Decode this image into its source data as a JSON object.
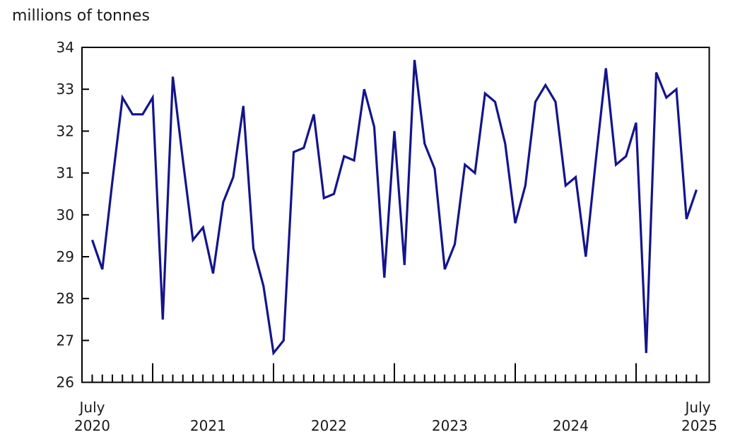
{
  "chart_data": {
    "type": "line",
    "title": "millions of tonnes",
    "grid": false,
    "legend_position": "none",
    "line_color": "#14148c",
    "axis_color": "#000000",
    "x_axis": {
      "start_label_line1": "July",
      "start_label_line2": "2020",
      "end_label_line1": "July",
      "end_label_line2": "2025",
      "year_labels": [
        "2021",
        "2022",
        "2023",
        "2024"
      ]
    },
    "y_axis": {
      "min": 26,
      "max": 34,
      "tick_step": 1,
      "tick_labels": [
        "26",
        "27",
        "28",
        "29",
        "30",
        "31",
        "32",
        "33",
        "34"
      ]
    },
    "months": [
      "Jul 2020",
      "Aug 2020",
      "Sep 2020",
      "Oct 2020",
      "Nov 2020",
      "Dec 2020",
      "Jan 2021",
      "Feb 2021",
      "Mar 2021",
      "Apr 2021",
      "May 2021",
      "Jun 2021",
      "Jul 2021",
      "Aug 2021",
      "Sep 2021",
      "Oct 2021",
      "Nov 2021",
      "Dec 2021",
      "Jan 2022",
      "Feb 2022",
      "Mar 2022",
      "Apr 2022",
      "May 2022",
      "Jun 2022",
      "Jul 2022",
      "Aug 2022",
      "Sep 2022",
      "Oct 2022",
      "Nov 2022",
      "Dec 2022",
      "Jan 2023",
      "Feb 2023",
      "Mar 2023",
      "Apr 2023",
      "May 2023",
      "Jun 2023",
      "Jul 2023",
      "Aug 2023",
      "Sep 2023",
      "Oct 2023",
      "Nov 2023",
      "Dec 2023",
      "Jan 2024",
      "Feb 2024",
      "Mar 2024",
      "Apr 2024",
      "May 2024",
      "Jun 2024",
      "Jul 2024",
      "Aug 2024",
      "Sep 2024",
      "Oct 2024",
      "Nov 2024",
      "Dec 2024",
      "Jan 2025",
      "Feb 2025",
      "Mar 2025",
      "Apr 2025",
      "May 2025",
      "Jun 2025",
      "Jul 2025"
    ],
    "values": [
      29.4,
      28.7,
      30.8,
      32.8,
      32.4,
      32.4,
      32.8,
      27.5,
      33.3,
      31.3,
      29.4,
      29.7,
      28.6,
      30.3,
      30.9,
      32.6,
      29.2,
      28.3,
      26.7,
      27.0,
      31.5,
      31.6,
      32.4,
      30.4,
      30.5,
      31.4,
      31.3,
      33.0,
      32.1,
      28.5,
      32.0,
      28.8,
      33.7,
      31.7,
      31.1,
      28.7,
      29.3,
      31.2,
      31.0,
      32.9,
      32.7,
      31.7,
      29.8,
      30.7,
      32.7,
      33.1,
      32.7,
      30.7,
      30.9,
      29.0,
      31.3,
      33.5,
      31.2,
      31.4,
      32.2,
      26.7,
      33.4,
      32.8,
      33.0,
      29.9,
      30.6
    ]
  }
}
